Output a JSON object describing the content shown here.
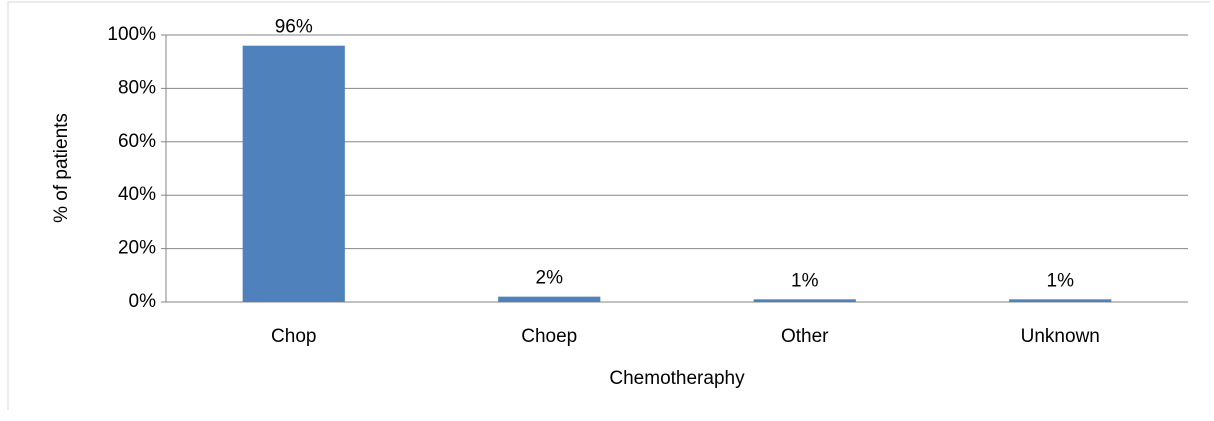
{
  "chart_data": {
    "type": "bar",
    "x_label": "Chemotheraphy",
    "y_label": "% of patients",
    "categories": [
      "Chop",
      "Choep",
      "Other",
      "Unknown"
    ],
    "values": [
      96,
      2,
      1,
      1
    ],
    "value_labels": [
      "96%",
      "2%",
      "1%",
      "1%"
    ],
    "color": "#4f81bd",
    "ylim": [
      0,
      100
    ],
    "yticks": [
      {
        "value": 0,
        "label": "0%"
      },
      {
        "value": 20,
        "label": "20%"
      },
      {
        "value": 40,
        "label": "40%"
      },
      {
        "value": 60,
        "label": "60%"
      },
      {
        "value": 80,
        "label": "80%"
      },
      {
        "value": 100,
        "label": "100%"
      }
    ],
    "grid": true
  }
}
